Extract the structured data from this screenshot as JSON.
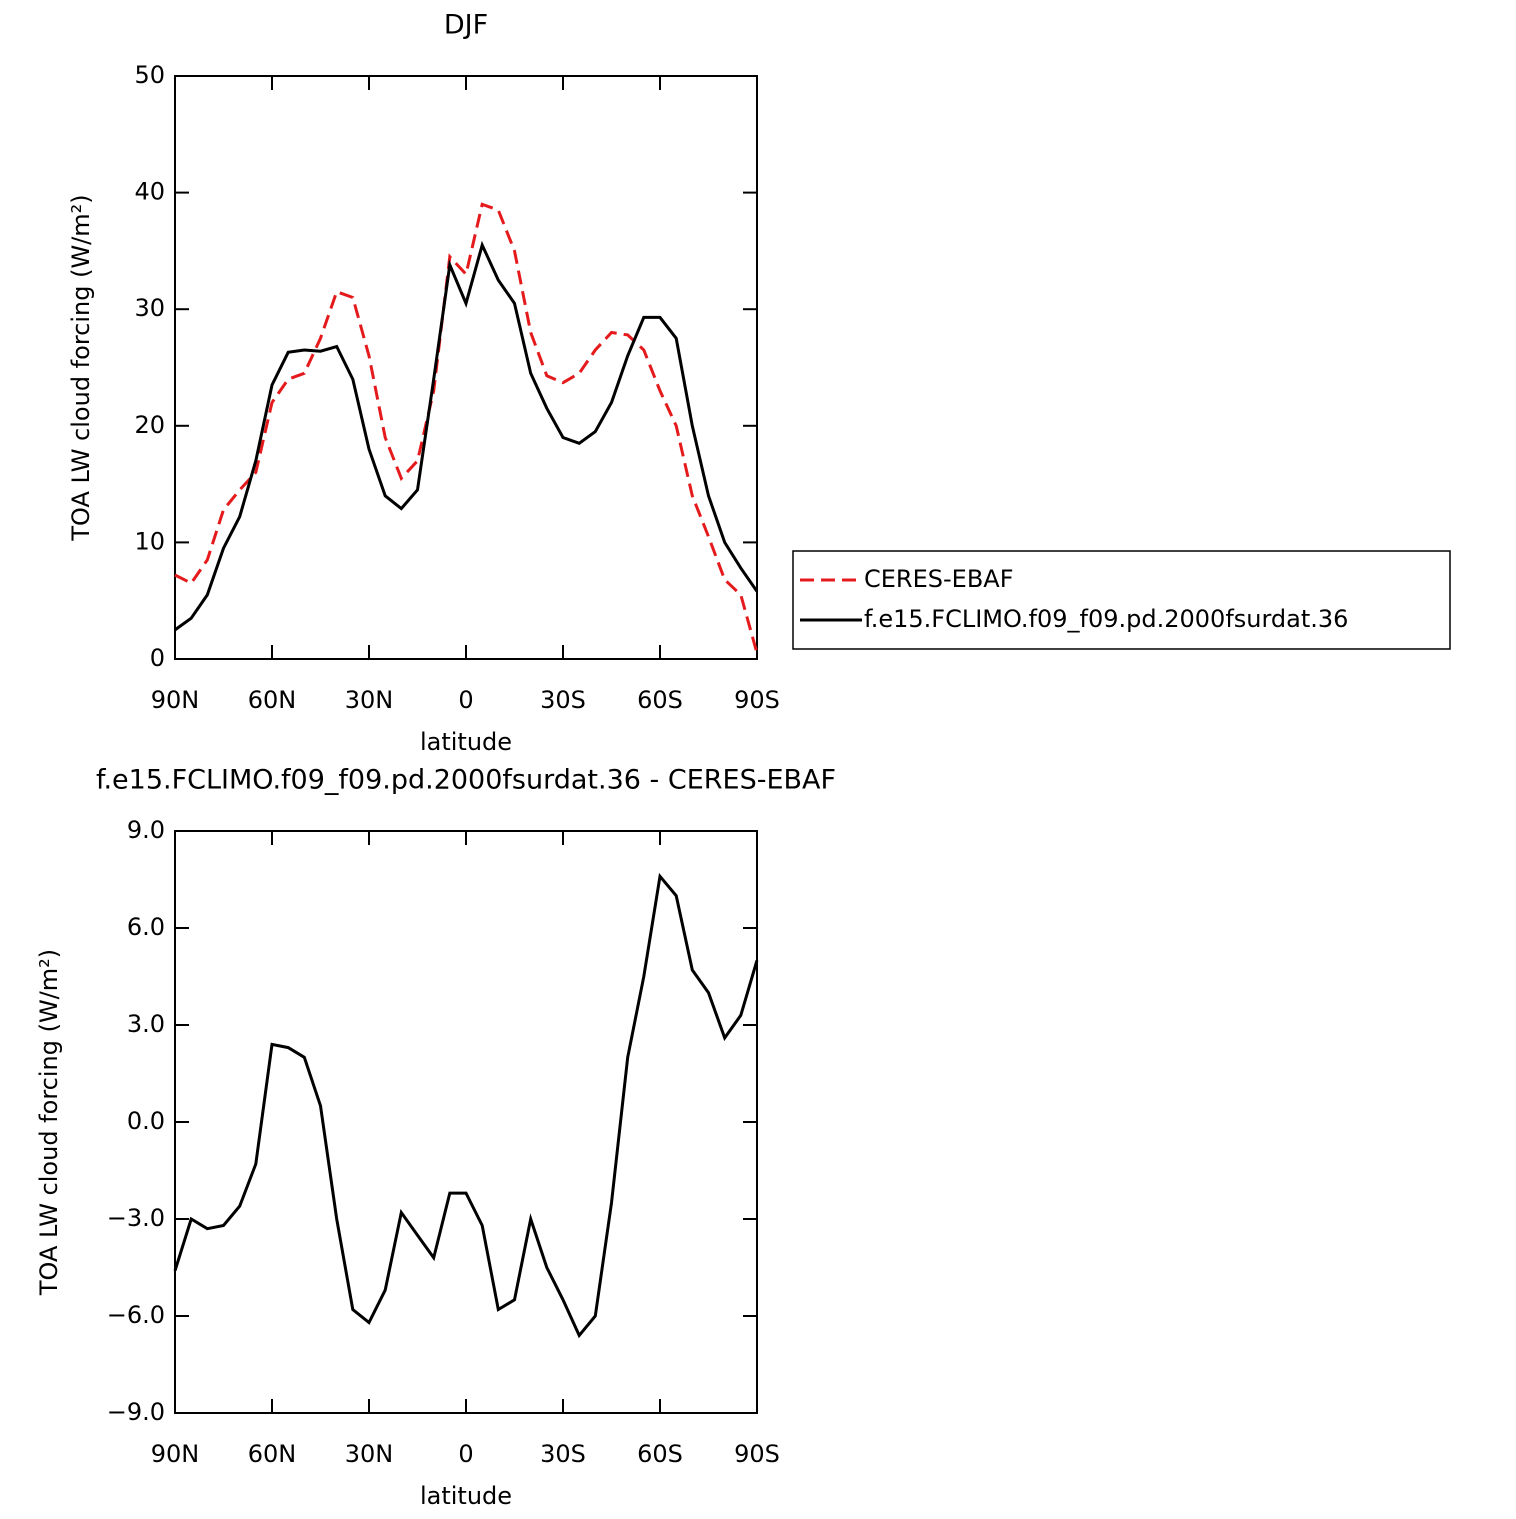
{
  "chart_data": [
    {
      "type": "line",
      "title": "DJF",
      "x_label": "latitude",
      "y_label": "TOA LW cloud forcing (W/m²)",
      "x": [
        90,
        85,
        80,
        75,
        70,
        65,
        60,
        55,
        50,
        45,
        40,
        35,
        30,
        25,
        20,
        15,
        10,
        5,
        0,
        -5,
        -10,
        -15,
        -20,
        -25,
        -30,
        -35,
        -40,
        -45,
        -50,
        -55,
        -60,
        -65,
        -70,
        -75,
        -80,
        -85,
        -90
      ],
      "series": [
        {
          "name": "CERES-EBAF",
          "color": "#e41a1c",
          "line_style": "dashed",
          "values": [
            7.2,
            6.5,
            8.5,
            12.8,
            14.5,
            16,
            22,
            24,
            24.5,
            27.5,
            31.5,
            31,
            26,
            19,
            15.5,
            17,
            23,
            34.5,
            33,
            39,
            38.5,
            35,
            28,
            24.3,
            23.7,
            24.5,
            26.5,
            28,
            27.8,
            26.5,
            23,
            20,
            14,
            10.5,
            6.8,
            5.5,
            0.5
          ]
        },
        {
          "name": "f.e15.FCLIMO.f09_f09.pd.2000fsurdat.36",
          "color": "#000000",
          "line_style": "solid",
          "values": [
            2.5,
            3.5,
            5.5,
            9.5,
            12.2,
            17,
            23.5,
            26.3,
            26.5,
            26.4,
            26.8,
            24,
            18,
            14,
            12.9,
            14.5,
            24,
            33.8,
            30.5,
            35.5,
            32.5,
            30.5,
            24.5,
            21.5,
            19,
            18.5,
            19.5,
            22,
            26,
            29.3,
            29.3,
            27.5,
            20,
            14,
            10,
            7.8,
            5.8
          ]
        }
      ],
      "xlim": [
        90,
        -90
      ],
      "xticks": [
        {
          "value": 90,
          "label": "90N"
        },
        {
          "value": 60,
          "label": "60N"
        },
        {
          "value": 30,
          "label": "30N"
        },
        0,
        {
          "value": -30,
          "label": "30S"
        },
        {
          "value": -60,
          "label": "60S"
        },
        {
          "value": -90,
          "label": "90S"
        }
      ],
      "ylim": [
        0,
        50
      ],
      "yticks": [
        0,
        10,
        20,
        30,
        40,
        50
      ],
      "legend": "right"
    },
    {
      "type": "line",
      "title": "f.e15.FCLIMO.f09_f09.pd.2000fsurdat.36 - CERES-EBAF",
      "x_label": "latitude",
      "y_label": "TOA LW cloud forcing (W/m²)",
      "x": [
        90,
        85,
        80,
        75,
        70,
        65,
        60,
        55,
        50,
        45,
        40,
        35,
        30,
        25,
        20,
        15,
        10,
        5,
        0,
        -5,
        -10,
        -15,
        -20,
        -25,
        -30,
        -35,
        -40,
        -45,
        -50,
        -55,
        -60,
        -65,
        -70,
        -75,
        -80,
        -85,
        -90
      ],
      "series": [
        {
          "color": "#000000",
          "line_style": "solid",
          "values": [
            -4.6,
            -3.0,
            -3.3,
            -3.2,
            -2.6,
            -1.3,
            2.4,
            2.3,
            2.0,
            0.5,
            -3.0,
            -5.8,
            -6.2,
            -5.2,
            -2.8,
            -3.5,
            -4.2,
            -2.2,
            -2.2,
            -3.2,
            -5.8,
            -5.5,
            -3.0,
            -4.5,
            -5.5,
            -6.6,
            -6.0,
            -2.5,
            2.0,
            4.5,
            7.6,
            7.0,
            4.7,
            4.0,
            2.6,
            3.3,
            5.0
          ]
        }
      ],
      "xlim": [
        90,
        -90
      ],
      "xticks": [
        {
          "value": 90,
          "label": "90N"
        },
        {
          "value": 60,
          "label": "60N"
        },
        {
          "value": 30,
          "label": "30N"
        },
        0,
        {
          "value": -30,
          "label": "30S"
        },
        {
          "value": -60,
          "label": "60S"
        },
        {
          "value": -90,
          "label": "90S"
        }
      ],
      "ylim": [
        -9,
        9
      ],
      "yticks": [
        {
          "value": -9,
          "label": "−9.0"
        },
        {
          "value": -6,
          "label": "−6.0"
        },
        {
          "value": -3,
          "label": "−3.0"
        },
        {
          "value": 0,
          "label": "0.0"
        },
        {
          "value": 3,
          "label": "3.0"
        },
        {
          "value": 6,
          "label": "6.0"
        },
        {
          "value": 9,
          "label": "9.0"
        }
      ]
    }
  ]
}
